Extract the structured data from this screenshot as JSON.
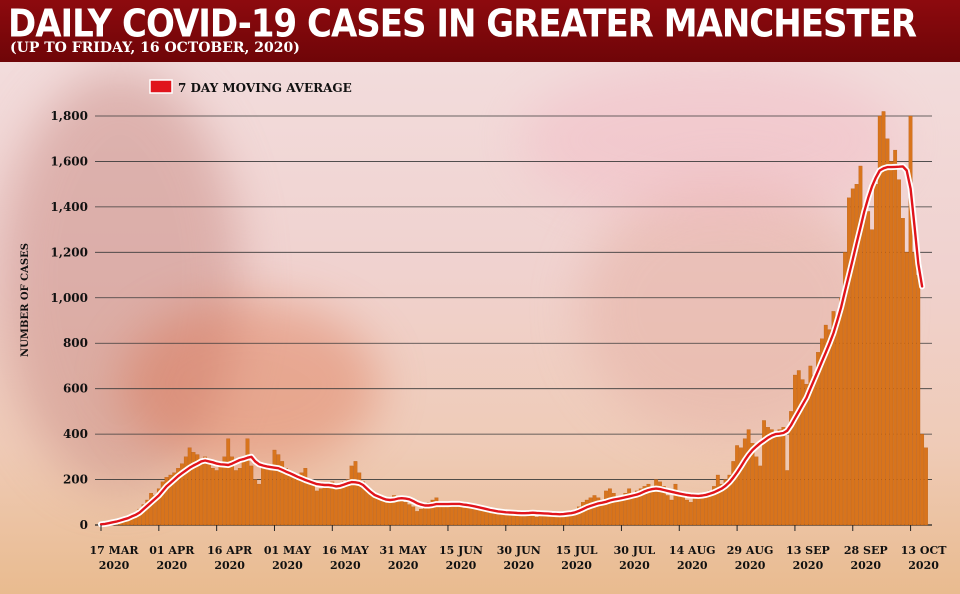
{
  "header": {
    "title": "DAILY COVID-19 CASES IN GREATER MANCHESTER",
    "subtitle": "(UP TO FRIDAY, 16 OCTOBER, 2020)"
  },
  "colors": {
    "bar": "#d8741c",
    "bar_edge": "#b75a10",
    "line": "#e0141c",
    "line_halo": "#ffffff",
    "header": "#8b0a0e"
  },
  "chart_data": {
    "type": "bar",
    "title": "DAILY COVID-19 CASES IN GREATER MANCHESTER",
    "subtitle": "(UP TO FRIDAY, 16 OCTOBER, 2020)",
    "xlabel": "",
    "ylabel": "NUMBER OF CASES",
    "ylim": [
      0,
      1900
    ],
    "yticks": [
      0,
      200,
      400,
      600,
      800,
      "1,000",
      "1,200",
      "1,400",
      "1,600",
      "1,800"
    ],
    "ytick_values": [
      0,
      200,
      400,
      600,
      800,
      1000,
      1200,
      1400,
      1600,
      1800
    ],
    "xticks": [
      {
        "day": 0,
        "line1": "17 MAR",
        "line2": "2020"
      },
      {
        "day": 15,
        "line1": "01 APR",
        "line2": "2020"
      },
      {
        "day": 30,
        "line1": "16 APR",
        "line2": "2020"
      },
      {
        "day": 45,
        "line1": "01 MAY",
        "line2": "2020"
      },
      {
        "day": 60,
        "line1": "16 MAY",
        "line2": "2020"
      },
      {
        "day": 75,
        "line1": "31 MAY",
        "line2": "2020"
      },
      {
        "day": 90,
        "line1": "15 JUN",
        "line2": "2020"
      },
      {
        "day": 105,
        "line1": "30 JUN",
        "line2": "2020"
      },
      {
        "day": 120,
        "line1": "15 JUL",
        "line2": "2020"
      },
      {
        "day": 135,
        "line1": "30 JUL",
        "line2": "2020"
      },
      {
        "day": 150,
        "line1": "14 AUG",
        "line2": "2020"
      },
      {
        "day": 165,
        "line1": "29 AUG",
        "line2": "2020"
      },
      {
        "day": 180,
        "line1": "13 SEP",
        "line2": "2020"
      },
      {
        "day": 195,
        "line1": "28 SEP",
        "line2": "2020"
      },
      {
        "day": 210,
        "line1": "13 OCT",
        "line2": "2020"
      }
    ],
    "start_date": "17 MAR 2020",
    "daily_cases": [
      2,
      5,
      8,
      12,
      15,
      18,
      22,
      30,
      45,
      40,
      70,
      90,
      110,
      140,
      130,
      160,
      190,
      210,
      220,
      230,
      250,
      270,
      300,
      340,
      320,
      310,
      280,
      300,
      270,
      250,
      240,
      260,
      300,
      380,
      300,
      240,
      250,
      300,
      380,
      260,
      200,
      180,
      250,
      260,
      240,
      330,
      310,
      280,
      250,
      220,
      210,
      200,
      230,
      250,
      200,
      180,
      150,
      160,
      170,
      180,
      190,
      180,
      170,
      190,
      200,
      260,
      280,
      230,
      190,
      160,
      140,
      130,
      120,
      110,
      100,
      110,
      130,
      120,
      110,
      100,
      90,
      80,
      60,
      70,
      80,
      100,
      110,
      120,
      100,
      90,
      80,
      85,
      95,
      100,
      90,
      85,
      80,
      75,
      70,
      65,
      60,
      55,
      55,
      50,
      50,
      45,
      45,
      40,
      40,
      45,
      50,
      45,
      40,
      35,
      45,
      55,
      50,
      45,
      40,
      40,
      45,
      50,
      55,
      60,
      80,
      100,
      110,
      120,
      130,
      120,
      110,
      150,
      160,
      140,
      110,
      120,
      140,
      160,
      130,
      150,
      160,
      170,
      180,
      160,
      200,
      190,
      170,
      130,
      110,
      180,
      140,
      130,
      110,
      100,
      130,
      140,
      120,
      140,
      150,
      170,
      220,
      180,
      200,
      220,
      280,
      350,
      340,
      380,
      420,
      360,
      300,
      260,
      460,
      430,
      420,
      400,
      420,
      430,
      240,
      500,
      660,
      680,
      640,
      620,
      700,
      660,
      760,
      820,
      880,
      860,
      940,
      900,
      1000,
      1200,
      1440,
      1480,
      1500,
      1580,
      1400,
      1380,
      1300,
      1500,
      1800,
      1820,
      1700,
      1600,
      1650,
      1520,
      1350,
      1200,
      1800,
      1200,
      1100,
      400,
      340
    ],
    "moving_average": {
      "name": "7 DAY MOVING AVERAGE",
      "values": [
        3,
        5,
        8,
        12,
        15,
        20,
        25,
        30,
        38,
        45,
        55,
        70,
        85,
        100,
        115,
        130,
        150,
        170,
        185,
        200,
        215,
        228,
        240,
        252,
        262,
        270,
        280,
        284,
        280,
        276,
        270,
        267,
        266,
        264,
        270,
        278,
        286,
        290,
        296,
        300,
        280,
        267,
        262,
        258,
        255,
        252,
        250,
        243,
        235,
        228,
        220,
        212,
        205,
        198,
        192,
        186,
        180,
        178,
        176,
        176,
        174,
        170,
        172,
        178,
        184,
        189,
        188,
        185,
        176,
        160,
        145,
        132,
        125,
        118,
        112,
        110,
        112,
        116,
        118,
        116,
        113,
        105,
        96,
        90,
        86,
        86,
        88,
        92,
        92,
        92,
        92,
        93,
        93,
        93,
        90,
        88,
        85,
        82,
        78,
        74,
        70,
        66,
        63,
        60,
        58,
        56,
        55,
        54,
        53,
        52,
        52,
        53,
        54,
        53,
        52,
        51,
        50,
        49,
        48,
        47,
        48,
        50,
        52,
        56,
        62,
        70,
        78,
        84,
        90,
        95,
        98,
        102,
        108,
        112,
        115,
        118,
        122,
        126,
        130,
        134,
        140,
        148,
        154,
        158,
        160,
        158,
        154,
        150,
        146,
        142,
        138,
        135,
        132,
        130,
        129,
        128,
        130,
        133,
        138,
        144,
        152,
        160,
        172,
        188,
        208,
        232,
        258,
        285,
        310,
        330,
        346,
        360,
        372,
        384,
        394,
        400,
        402,
        405,
        415,
        440,
        470,
        500,
        530,
        560,
        600,
        640,
        680,
        720,
        760,
        800,
        845,
        900,
        960,
        1030,
        1100,
        1170,
        1240,
        1310,
        1380,
        1440,
        1490,
        1530,
        1560,
        1570,
        1575,
        1575,
        1576,
        1577,
        1578,
        1560,
        1480,
        1320,
        1150,
        1050
      ]
    }
  }
}
